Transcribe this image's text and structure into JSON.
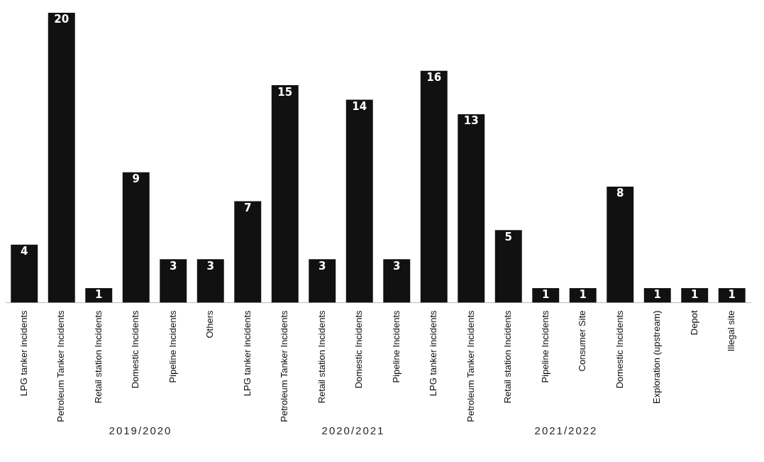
{
  "chart_data": {
    "type": "bar",
    "categories": [
      "LPG tanker incidents",
      "Petroleum Tanker Incidents",
      "Retail station Incidents",
      "Domestic Incidents",
      "Pipeline Incidents",
      "Others",
      "LPG tanker incidents",
      "Petroleum Tanker Incidents",
      "Retail station Incidents",
      "Domestic Incidents",
      "Pipeline Incidents",
      "LPG tanker incidents",
      "Petroleum Tanker Incidents",
      "Retail station Incidents",
      "Pipeline Incidents",
      "Consumer Site",
      "Domestic Incidents",
      "Exploration (upstream)",
      "Depot",
      "Illegal site"
    ],
    "values": [
      4,
      20,
      1,
      9,
      3,
      3,
      7,
      15,
      3,
      14,
      3,
      16,
      13,
      5,
      1,
      1,
      8,
      1,
      1,
      1
    ],
    "color": "#111111",
    "data_labels": true,
    "grid": false,
    "legend": false,
    "annotations": [
      "2019/2020",
      "2020/2021",
      "2021/2022"
    ]
  }
}
